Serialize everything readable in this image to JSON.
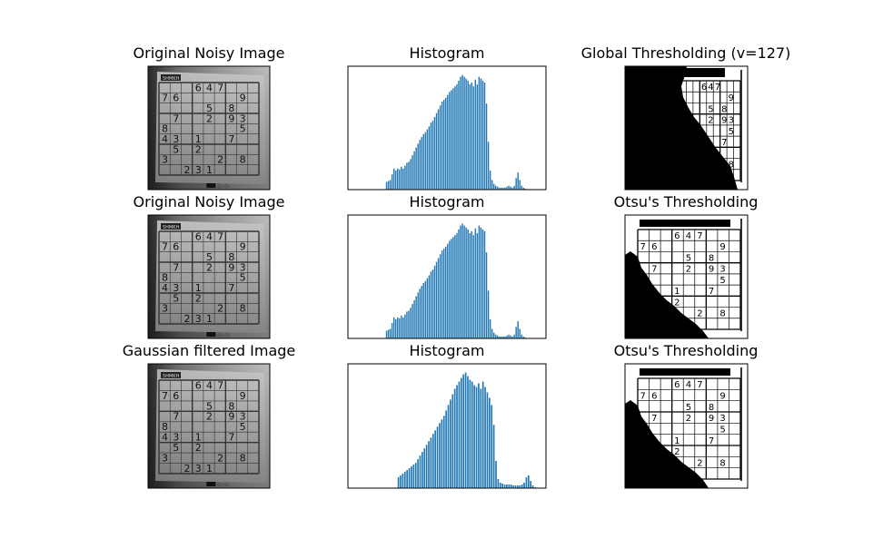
{
  "titles": {
    "r1c1": "Original Noisy Image",
    "r1c2": "Histogram",
    "r1c3": "Global Thresholding (v=127)",
    "r2c1": "Original Noisy Image",
    "r2c2": "Histogram",
    "r2c3": "Otsu's Thresholding",
    "r3c1": "Gaussian filtered Image",
    "r3c2": "Histogram",
    "r3c3": "Otsu's Thresholding"
  },
  "colors": {
    "bar": "#1f77b4",
    "frame": "#000000",
    "background": "#ffffff"
  },
  "sudoku": {
    "header": "5HMKH",
    "footer": "Q+-Ch",
    "digits": [
      {
        "r": 0,
        "c": 3,
        "v": "6"
      },
      {
        "r": 0,
        "c": 4,
        "v": "4"
      },
      {
        "r": 0,
        "c": 5,
        "v": "7"
      },
      {
        "r": 1,
        "c": 0,
        "v": "7"
      },
      {
        "r": 1,
        "c": 1,
        "v": "6"
      },
      {
        "r": 1,
        "c": 7,
        "v": "9"
      },
      {
        "r": 2,
        "c": 4,
        "v": "5"
      },
      {
        "r": 2,
        "c": 6,
        "v": "8"
      },
      {
        "r": 3,
        "c": 1,
        "v": "7"
      },
      {
        "r": 3,
        "c": 4,
        "v": "2"
      },
      {
        "r": 3,
        "c": 6,
        "v": "9"
      },
      {
        "r": 3,
        "c": 7,
        "v": "3"
      },
      {
        "r": 4,
        "c": 0,
        "v": "8"
      },
      {
        "r": 4,
        "c": 7,
        "v": "5"
      },
      {
        "r": 5,
        "c": 0,
        "v": "4"
      },
      {
        "r": 5,
        "c": 1,
        "v": "3"
      },
      {
        "r": 5,
        "c": 3,
        "v": "1"
      },
      {
        "r": 5,
        "c": 6,
        "v": "7"
      },
      {
        "r": 6,
        "c": 1,
        "v": "5"
      },
      {
        "r": 6,
        "c": 3,
        "v": "2"
      },
      {
        "r": 7,
        "c": 0,
        "v": "3"
      },
      {
        "r": 7,
        "c": 5,
        "v": "2"
      },
      {
        "r": 7,
        "c": 7,
        "v": "8"
      },
      {
        "r": 8,
        "c": 2,
        "v": "2"
      },
      {
        "r": 8,
        "c": 3,
        "v": "3"
      },
      {
        "r": 8,
        "c": 4,
        "v": "1"
      }
    ]
  },
  "chart_data": [
    {
      "type": "bar",
      "title": "Histogram",
      "xlabel": "",
      "ylabel": "",
      "xlim": [
        0,
        256
      ],
      "note_axes": "ticks hidden",
      "profile": "noisy",
      "values": [
        0,
        0,
        0,
        0,
        0,
        0,
        0,
        0,
        0,
        0,
        0,
        0,
        0,
        0,
        0,
        0,
        0,
        0,
        0,
        0,
        0,
        0,
        0,
        0,
        0,
        0,
        0,
        0,
        0,
        0,
        0,
        0,
        0,
        0,
        0,
        0,
        0,
        0,
        0,
        0,
        8,
        0,
        9,
        0,
        10,
        0,
        16,
        0,
        22,
        0,
        20,
        0,
        22,
        0,
        21,
        0,
        24,
        0,
        22,
        0,
        25,
        0,
        28,
        0,
        29,
        0,
        32,
        0,
        36,
        0,
        40,
        0,
        44,
        0,
        48,
        0,
        52,
        0,
        55,
        0,
        58,
        0,
        60,
        0,
        63,
        0,
        66,
        0,
        70,
        0,
        72,
        0,
        76,
        0,
        80,
        0,
        84,
        0,
        88,
        0,
        92,
        0,
        94,
        0,
        96,
        0,
        99,
        0,
        102,
        0,
        104,
        0,
        106,
        0,
        108,
        0,
        110,
        0,
        114,
        0,
        118,
        0,
        120,
        0,
        118,
        0,
        116,
        0,
        114,
        0,
        110,
        0,
        112,
        0,
        108,
        0,
        115,
        0,
        110,
        0,
        118,
        0,
        116,
        0,
        114,
        0,
        112,
        0,
        90,
        0,
        50,
        0,
        20,
        0,
        10,
        0,
        6,
        0,
        4,
        0,
        3,
        0,
        2,
        0,
        2,
        0,
        2,
        0,
        2,
        0,
        3,
        0,
        4,
        0,
        3,
        0,
        2,
        0,
        4,
        0,
        12,
        0,
        18,
        0,
        10,
        0,
        4,
        0,
        2,
        0,
        1,
        0,
        0,
        0,
        0,
        0,
        0,
        0,
        0,
        0,
        0,
        0,
        0,
        0,
        0,
        0,
        0,
        0,
        0,
        0,
        0,
        0
      ]
    },
    {
      "type": "bar",
      "title": "Histogram",
      "xlabel": "",
      "ylabel": "",
      "xlim": [
        0,
        256
      ],
      "note_axes": "ticks hidden",
      "profile": "noisy",
      "values": "same as first histogram"
    },
    {
      "type": "bar",
      "title": "Histogram",
      "xlabel": "",
      "ylabel": "",
      "xlim": [
        0,
        256
      ],
      "note_axes": "ticks hidden",
      "profile": "smoothed",
      "values": [
        0,
        0,
        0,
        0,
        0,
        0,
        0,
        0,
        0,
        0,
        0,
        0,
        0,
        0,
        0,
        0,
        0,
        0,
        0,
        0,
        0,
        0,
        0,
        0,
        0,
        0,
        0,
        0,
        0,
        0,
        0,
        0,
        0,
        0,
        0,
        0,
        0,
        0,
        0,
        0,
        0,
        0,
        0,
        0,
        0,
        12,
        0,
        14,
        0,
        16,
        0,
        18,
        0,
        20,
        0,
        22,
        0,
        24,
        0,
        26,
        0,
        28,
        0,
        32,
        0,
        36,
        0,
        40,
        0,
        44,
        0,
        48,
        0,
        52,
        0,
        56,
        0,
        60,
        0,
        64,
        0,
        68,
        0,
        72,
        0,
        76,
        0,
        80,
        0,
        86,
        0,
        92,
        0,
        98,
        0,
        104,
        0,
        110,
        0,
        114,
        0,
        118,
        0,
        122,
        0,
        126,
        0,
        128,
        0,
        124,
        0,
        120,
        0,
        118,
        0,
        114,
        0,
        112,
        0,
        116,
        0,
        110,
        0,
        118,
        0,
        112,
        0,
        106,
        0,
        100,
        0,
        92,
        0,
        70,
        0,
        30,
        0,
        10,
        0,
        6,
        0,
        5,
        0,
        4,
        0,
        4,
        0,
        4,
        0,
        4,
        0,
        3,
        0,
        3,
        0,
        3,
        0,
        3,
        0,
        4,
        0,
        6,
        0,
        12,
        0,
        14,
        0,
        8,
        0,
        3,
        0,
        1,
        0,
        0,
        0,
        0,
        0,
        0,
        0,
        0,
        0
      ]
    }
  ]
}
